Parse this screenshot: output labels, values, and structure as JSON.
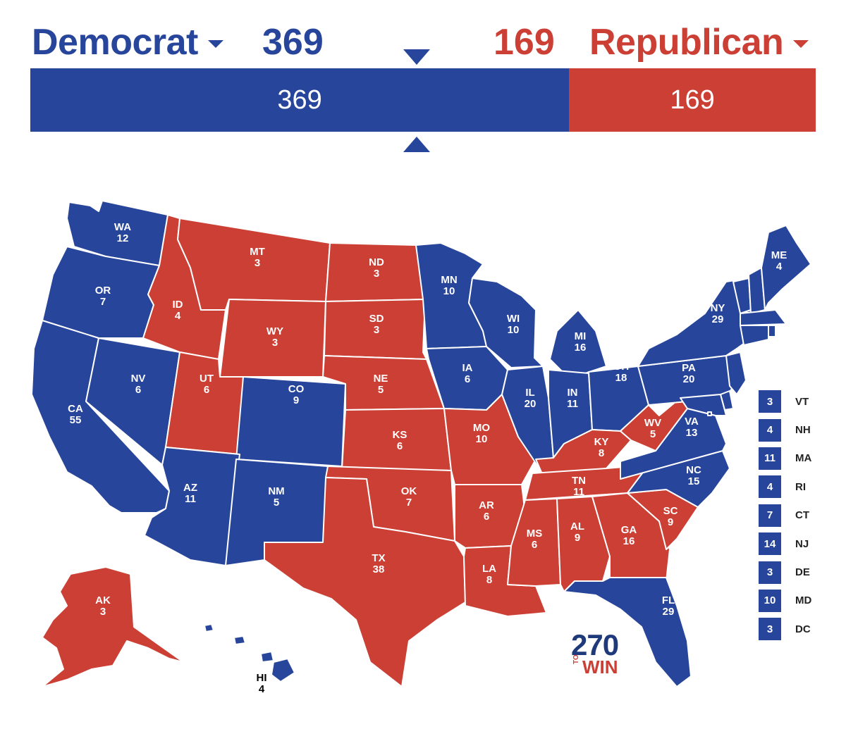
{
  "header": {
    "dem_label": "Democrat",
    "dem_total": "369",
    "rep_label": "Republican",
    "rep_total": "169"
  },
  "bar": {
    "dem_value": 369,
    "rep_value": 169,
    "dem_text": "369",
    "rep_text": "169"
  },
  "colors": {
    "dem": "#27459a",
    "rep": "#cb3f35"
  },
  "states": {
    "WA": {
      "abbr": "WA",
      "ev": "12",
      "party": "dem"
    },
    "OR": {
      "abbr": "OR",
      "ev": "7",
      "party": "dem"
    },
    "CA": {
      "abbr": "CA",
      "ev": "55",
      "party": "dem"
    },
    "NV": {
      "abbr": "NV",
      "ev": "6",
      "party": "dem"
    },
    "ID": {
      "abbr": "ID",
      "ev": "4",
      "party": "rep"
    },
    "MT": {
      "abbr": "MT",
      "ev": "3",
      "party": "rep"
    },
    "WY": {
      "abbr": "WY",
      "ev": "3",
      "party": "rep"
    },
    "UT": {
      "abbr": "UT",
      "ev": "6",
      "party": "rep"
    },
    "CO": {
      "abbr": "CO",
      "ev": "9",
      "party": "dem"
    },
    "AZ": {
      "abbr": "AZ",
      "ev": "11",
      "party": "dem"
    },
    "NM": {
      "abbr": "NM",
      "ev": "5",
      "party": "dem"
    },
    "ND": {
      "abbr": "ND",
      "ev": "3",
      "party": "rep"
    },
    "SD": {
      "abbr": "SD",
      "ev": "3",
      "party": "rep"
    },
    "NE": {
      "abbr": "NE",
      "ev": "5",
      "party": "rep"
    },
    "KS": {
      "abbr": "KS",
      "ev": "6",
      "party": "rep"
    },
    "OK": {
      "abbr": "OK",
      "ev": "7",
      "party": "rep"
    },
    "TX": {
      "abbr": "TX",
      "ev": "38",
      "party": "rep"
    },
    "MN": {
      "abbr": "MN",
      "ev": "10",
      "party": "dem"
    },
    "IA": {
      "abbr": "IA",
      "ev": "6",
      "party": "dem"
    },
    "MO": {
      "abbr": "MO",
      "ev": "10",
      "party": "rep"
    },
    "AR": {
      "abbr": "AR",
      "ev": "6",
      "party": "rep"
    },
    "LA": {
      "abbr": "LA",
      "ev": "8",
      "party": "rep"
    },
    "WI": {
      "abbr": "WI",
      "ev": "10",
      "party": "dem"
    },
    "IL": {
      "abbr": "IL",
      "ev": "20",
      "party": "dem"
    },
    "MI": {
      "abbr": "MI",
      "ev": "16",
      "party": "dem"
    },
    "IN": {
      "abbr": "IN",
      "ev": "11",
      "party": "dem"
    },
    "OH": {
      "abbr": "OH",
      "ev": "18",
      "party": "dem"
    },
    "KY": {
      "abbr": "KY",
      "ev": "8",
      "party": "rep"
    },
    "TN": {
      "abbr": "TN",
      "ev": "11",
      "party": "rep"
    },
    "MS": {
      "abbr": "MS",
      "ev": "6",
      "party": "rep"
    },
    "AL": {
      "abbr": "AL",
      "ev": "9",
      "party": "rep"
    },
    "GA": {
      "abbr": "GA",
      "ev": "16",
      "party": "rep"
    },
    "FL": {
      "abbr": "FL",
      "ev": "29",
      "party": "dem"
    },
    "SC": {
      "abbr": "SC",
      "ev": "9",
      "party": "rep"
    },
    "NC": {
      "abbr": "NC",
      "ev": "15",
      "party": "dem"
    },
    "VA": {
      "abbr": "VA",
      "ev": "13",
      "party": "dem"
    },
    "WV": {
      "abbr": "WV",
      "ev": "5",
      "party": "rep"
    },
    "PA": {
      "abbr": "PA",
      "ev": "20",
      "party": "dem"
    },
    "NY": {
      "abbr": "NY",
      "ev": "29",
      "party": "dem"
    },
    "ME": {
      "abbr": "ME",
      "ev": "4",
      "party": "dem"
    },
    "AK": {
      "abbr": "AK",
      "ev": "3",
      "party": "rep"
    },
    "HI": {
      "abbr": "HI",
      "ev": "4",
      "party": "dem"
    }
  },
  "legend": [
    {
      "ev": "3",
      "abbr": "VT"
    },
    {
      "ev": "4",
      "abbr": "NH"
    },
    {
      "ev": "11",
      "abbr": "MA"
    },
    {
      "ev": "4",
      "abbr": "RI"
    },
    {
      "ev": "7",
      "abbr": "CT"
    },
    {
      "ev": "14",
      "abbr": "NJ"
    },
    {
      "ev": "3",
      "abbr": "DE"
    },
    {
      "ev": "10",
      "abbr": "MD"
    },
    {
      "ev": "3",
      "abbr": "DC"
    }
  ],
  "logo": {
    "number": "270",
    "to": "TO",
    "win": "WIN"
  }
}
